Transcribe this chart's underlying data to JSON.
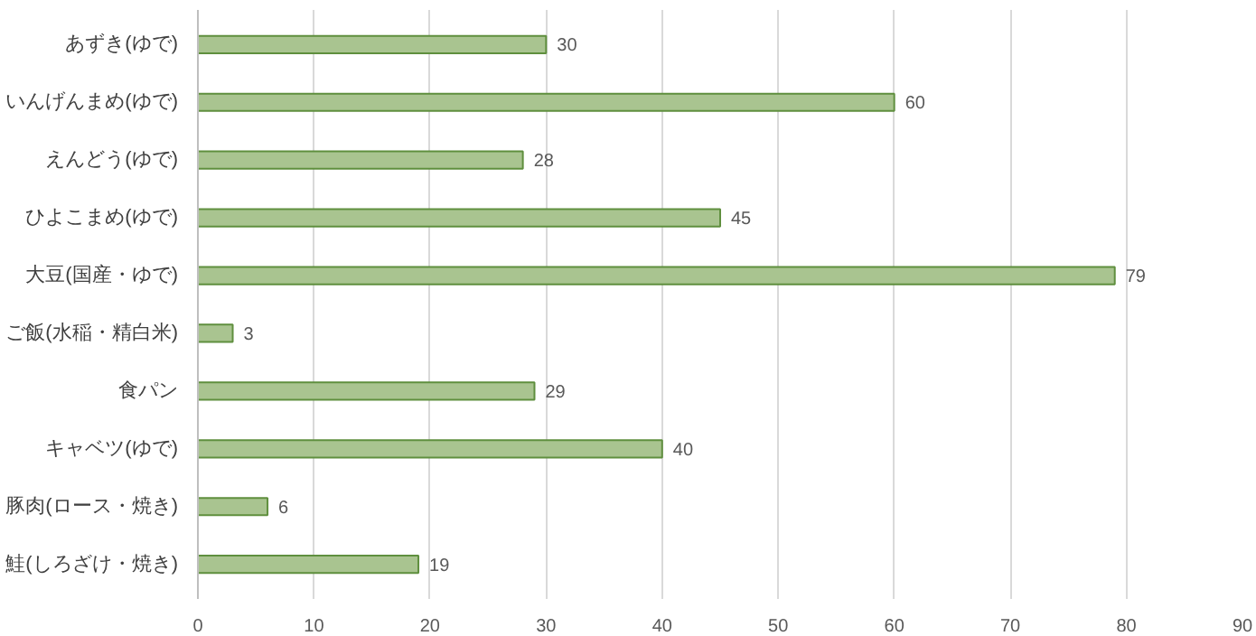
{
  "chart_data": {
    "type": "bar",
    "orientation": "horizontal",
    "categories": [
      "あずき(ゆで)",
      "いんげんまめ(ゆで)",
      "えんどう(ゆで)",
      "ひよこまめ(ゆで)",
      "大豆(国産・ゆで)",
      "ご飯(水稲・精白米)",
      "食パン",
      "キャベツ(ゆで)",
      "豚肉(ロース・焼き)",
      "鮭(しろざけ・焼き)"
    ],
    "values": [
      30,
      60,
      28,
      45,
      79,
      3,
      29,
      40,
      6,
      19
    ],
    "color": "#a9c490",
    "xlim": [
      0,
      90
    ],
    "xticks": [
      0,
      10,
      20,
      30,
      40,
      50,
      60,
      70,
      80,
      90
    ],
    "grid": "x",
    "data_labels": true
  }
}
